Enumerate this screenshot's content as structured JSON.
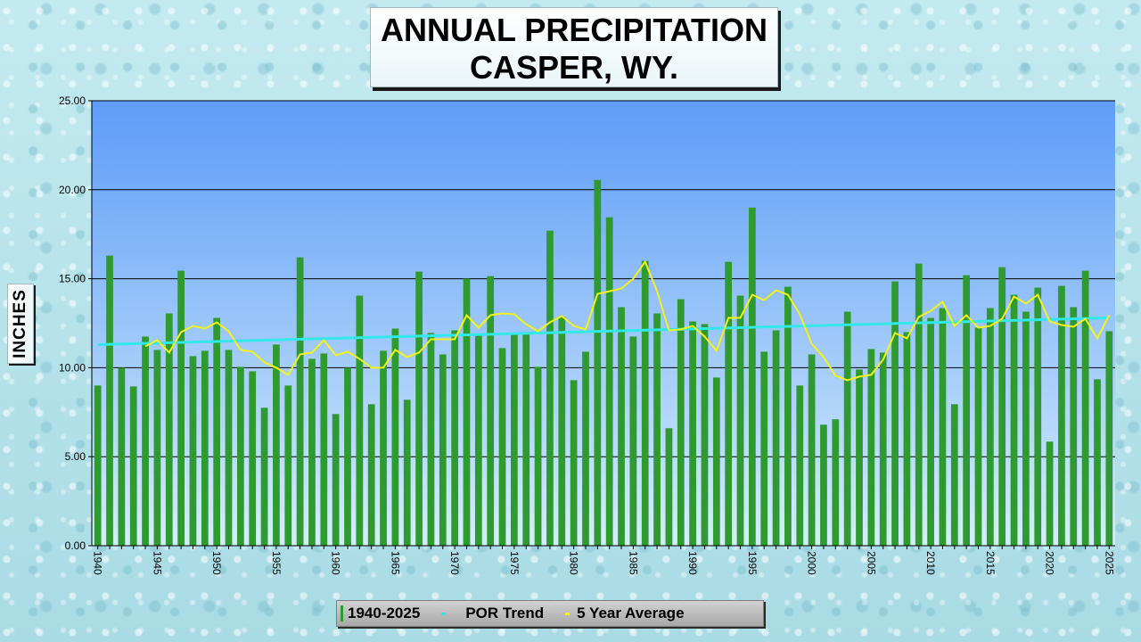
{
  "title": {
    "line1": "ANNUAL PRECIPITATION",
    "line2": "CASPER, WY."
  },
  "y_axis_title": "INCHES",
  "legend": {
    "bars": "1940-2025",
    "trend": "POR Trend",
    "avg": "5 Year Average"
  },
  "colors": {
    "bar": "#2f9a2f",
    "trend": "#33e8e8",
    "avg": "#f3f319",
    "plot_top": "#5e9cf8",
    "plot_bottom": "#d4eefa"
  },
  "chart_data": {
    "type": "bar",
    "title": "ANNUAL PRECIPITATION CASPER, WY.",
    "xlabel": "",
    "ylabel": "INCHES",
    "ylim": [
      0,
      25
    ],
    "yticks": [
      "0.00",
      "5.00",
      "10.00",
      "15.00",
      "20.00",
      "25.00"
    ],
    "xticks": [
      "1940",
      "1945",
      "1950",
      "1955",
      "1960",
      "1965",
      "1970",
      "1975",
      "1980",
      "1985",
      "1990",
      "1995",
      "2000",
      "2005",
      "2010",
      "2015",
      "2020",
      "2025"
    ],
    "x_start": 1940,
    "values": [
      9.0,
      16.3,
      10.0,
      8.95,
      11.75,
      11.0,
      13.05,
      15.45,
      10.65,
      10.95,
      12.8,
      11.0,
      10.05,
      9.8,
      7.75,
      11.3,
      9.0,
      16.2,
      10.5,
      10.8,
      7.4,
      10.0,
      14.05,
      7.95,
      10.95,
      12.2,
      8.2,
      15.4,
      11.95,
      10.75,
      12.1,
      15.0,
      11.8,
      15.15,
      11.1,
      11.85,
      11.9,
      10.05,
      17.7,
      12.85,
      9.3,
      10.9,
      20.55,
      18.45,
      13.4,
      11.75,
      16.0,
      13.05,
      6.6,
      13.85,
      12.6,
      12.45,
      9.45,
      15.95,
      14.05,
      19.0,
      10.9,
      12.1,
      14.55,
      9.0,
      10.75,
      6.8,
      7.1,
      13.15,
      9.9,
      11.05,
      10.85,
      14.85,
      12.0,
      15.85,
      12.8,
      13.35,
      7.95,
      15.2,
      12.25,
      13.35,
      15.65,
      14.1,
      13.15,
      14.5,
      5.85,
      14.6,
      13.4,
      15.45,
      9.35,
      12.05
    ],
    "series": [
      {
        "name": "POR Trend",
        "type": "line",
        "x": [
          1940,
          2025
        ],
        "values": [
          11.3,
          12.8
        ]
      },
      {
        "name": "5 Year Average",
        "type": "line",
        "x_start": 1944,
        "values": [
          11.2,
          11.55,
          10.85,
          12.0,
          12.35,
          12.2,
          12.55,
          12.05,
          11.0,
          10.9,
          10.3,
          10.0,
          9.6,
          10.75,
          10.85,
          11.55,
          10.7,
          10.9,
          10.5,
          10.0,
          10.0,
          11.0,
          10.6,
          10.85,
          11.6,
          11.6,
          11.6,
          12.95,
          12.25,
          12.95,
          13.05,
          13.0,
          12.45,
          12.05,
          12.55,
          12.9,
          12.35,
          12.15,
          14.15,
          14.3,
          14.45,
          15.0,
          15.95,
          14.3,
          12.1,
          12.15,
          12.35,
          11.75,
          10.95,
          12.8,
          12.8,
          14.1,
          13.8,
          14.35,
          14.1,
          13.0,
          11.35,
          10.6,
          9.55,
          9.3,
          9.5,
          9.6,
          10.45,
          11.95,
          11.65,
          12.85,
          13.2,
          13.7,
          12.35,
          12.95,
          12.25,
          12.35,
          12.75,
          14.0,
          13.6,
          14.1,
          12.6,
          12.4,
          12.3,
          12.75,
          11.65,
          12.95
        ]
      }
    ],
    "grid": true
  }
}
